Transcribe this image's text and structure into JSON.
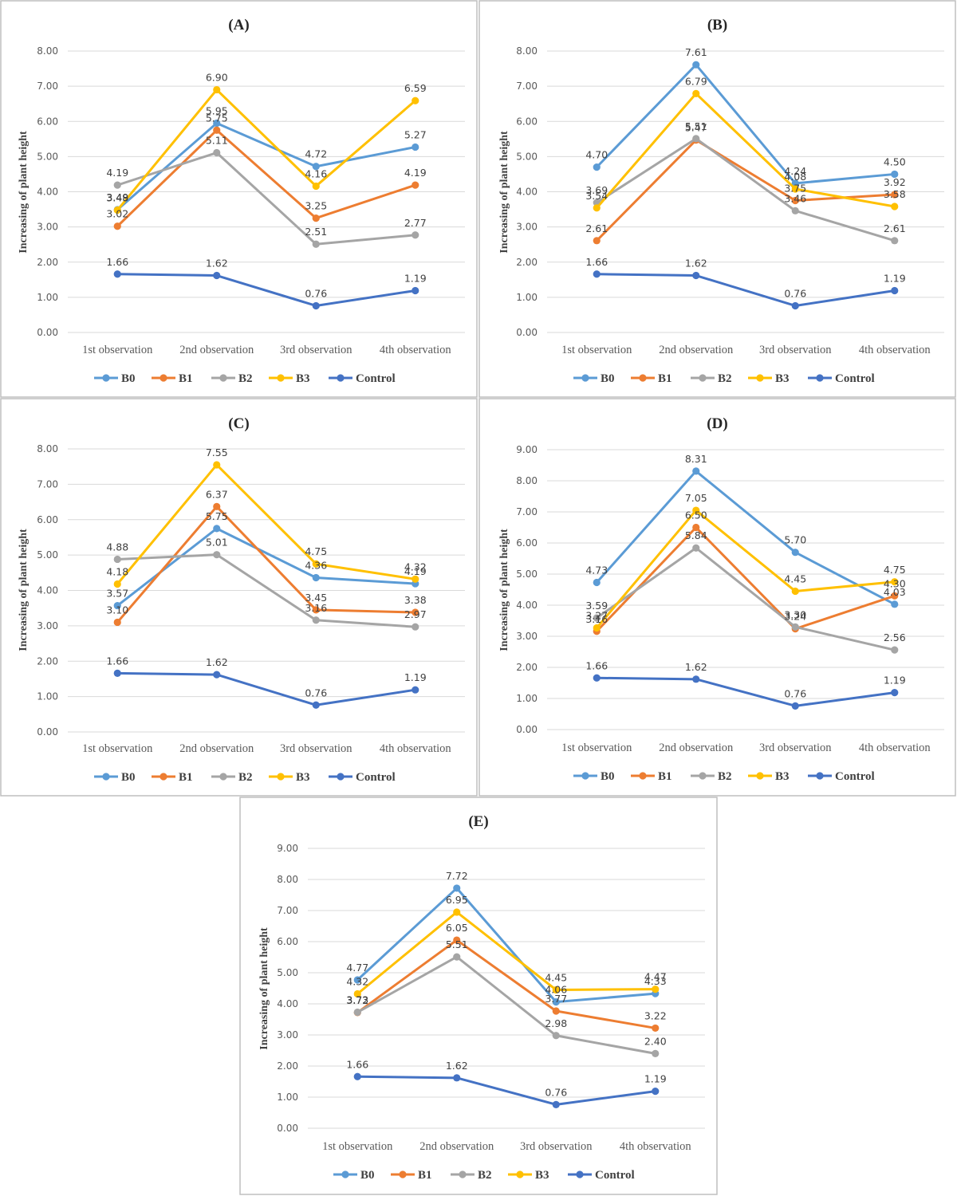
{
  "figure": {
    "series_colors": [
      "#5b9bd5",
      "#ed7d31",
      "#a5a5a5",
      "#ffc000",
      "#4472c4"
    ]
  },
  "chart_data": [
    {
      "type": "line",
      "title": "(A)",
      "xlabel": "",
      "ylabel": "Increasing of plant height",
      "categories": [
        "1st observation",
        "2nd observation",
        "3rd observation",
        "4th observation"
      ],
      "ylim": [
        0,
        8
      ],
      "yticks": [
        "0.00",
        "1.00",
        "2.00",
        "3.00",
        "4.00",
        "5.00",
        "6.00",
        "7.00",
        "8.00"
      ],
      "legend": "bottom",
      "series": [
        {
          "name": "B0",
          "color": "#5b9bd5",
          "values": [
            3.49,
            5.95,
            4.72,
            5.27
          ],
          "labels": [
            "3.49",
            "5.95",
            "4.72",
            "5.27"
          ]
        },
        {
          "name": "B1",
          "color": "#ed7d31",
          "values": [
            3.02,
            5.75,
            3.25,
            4.19
          ],
          "labels": [
            "3.02",
            "5.75",
            "3.25",
            "4.19"
          ]
        },
        {
          "name": "B2",
          "color": "#a5a5a5",
          "values": [
            4.19,
            5.11,
            2.51,
            2.77
          ],
          "labels": [
            "4.19",
            "5.11",
            "2.51",
            "2.77"
          ]
        },
        {
          "name": "B3",
          "color": "#ffc000",
          "values": [
            3.48,
            6.9,
            4.16,
            6.59
          ],
          "labels": [
            "3.48",
            "6.90",
            "4.16",
            "6.59"
          ]
        },
        {
          "name": "Control",
          "color": "#4472c4",
          "values": [
            1.66,
            1.62,
            0.76,
            1.19
          ],
          "labels": [
            "1.66",
            "1.62",
            "0.76",
            "1.19"
          ]
        }
      ]
    },
    {
      "type": "line",
      "title": "(B)",
      "xlabel": "",
      "ylabel": "Increasing of plant height",
      "categories": [
        "1st observation",
        "2nd observation",
        "3rd observation",
        "4th observation"
      ],
      "ylim": [
        0,
        8
      ],
      "yticks": [
        "0.00",
        "1.00",
        "2.00",
        "3.00",
        "4.00",
        "5.00",
        "6.00",
        "7.00",
        "8.00"
      ],
      "legend": "bottom",
      "series": [
        {
          "name": "B0",
          "color": "#5b9bd5",
          "values": [
            4.7,
            7.61,
            4.24,
            4.5
          ],
          "labels": [
            "4.70",
            "7.61",
            "4.24",
            "4.50"
          ]
        },
        {
          "name": "B1",
          "color": "#ed7d31",
          "values": [
            2.61,
            5.47,
            3.75,
            3.92
          ],
          "labels": [
            "2.61",
            "5.47",
            "3.75",
            "3.92"
          ]
        },
        {
          "name": "B2",
          "color": "#a5a5a5",
          "values": [
            3.69,
            5.51,
            3.46,
            2.61
          ],
          "labels": [
            "3.69",
            "5.51",
            "3.46",
            "2.61"
          ]
        },
        {
          "name": "B3",
          "color": "#ffc000",
          "values": [
            3.54,
            6.79,
            4.08,
            3.58
          ],
          "labels": [
            "3.54",
            "6.79",
            "4.08",
            "3.58"
          ]
        },
        {
          "name": "Control",
          "color": "#4472c4",
          "values": [
            1.66,
            1.62,
            0.76,
            1.19
          ],
          "labels": [
            "1.66",
            "1.62",
            "0.76",
            "1.19"
          ]
        }
      ]
    },
    {
      "type": "line",
      "title": "(C)",
      "xlabel": "",
      "ylabel": "Increasing of plant height",
      "categories": [
        "1st observation",
        "2nd observation",
        "3rd observation",
        "4th observation"
      ],
      "ylim": [
        0,
        8
      ],
      "yticks": [
        "0.00",
        "1.00",
        "2.00",
        "3.00",
        "4.00",
        "5.00",
        "6.00",
        "7.00",
        "8.00"
      ],
      "legend": "bottom",
      "series": [
        {
          "name": "B0",
          "color": "#5b9bd5",
          "values": [
            3.57,
            5.75,
            4.36,
            4.19
          ],
          "labels": [
            "3.57",
            "5.75",
            "4.36",
            "4.19"
          ]
        },
        {
          "name": "B1",
          "color": "#ed7d31",
          "values": [
            3.1,
            6.37,
            3.45,
            3.38
          ],
          "labels": [
            "3.10",
            "6.37",
            "3.45",
            "3.38"
          ]
        },
        {
          "name": "B2",
          "color": "#a5a5a5",
          "values": [
            4.88,
            5.01,
            3.16,
            2.97
          ],
          "labels": [
            "4.88",
            "5.01",
            "3.16",
            "2.97"
          ]
        },
        {
          "name": "B3",
          "color": "#ffc000",
          "values": [
            4.18,
            7.55,
            4.75,
            4.32
          ],
          "labels": [
            "4.18",
            "7.55",
            "4.75",
            "4.32"
          ]
        },
        {
          "name": "Control",
          "color": "#4472c4",
          "values": [
            1.66,
            1.62,
            0.76,
            1.19
          ],
          "labels": [
            "1.66",
            "1.62",
            "0.76",
            "1.19"
          ]
        }
      ]
    },
    {
      "type": "line",
      "title": "(D)",
      "xlabel": "",
      "ylabel": "Increasing of plant height",
      "categories": [
        "1st observation",
        "2nd observation",
        "3rd observation",
        "4th observation"
      ],
      "ylim": [
        0,
        9
      ],
      "yticks": [
        "0.00",
        "1.00",
        "2.00",
        "3.00",
        "4.00",
        "5.00",
        "6.00",
        "7.00",
        "8.00",
        "9.00"
      ],
      "legend": "bottom",
      "series": [
        {
          "name": "B0",
          "color": "#5b9bd5",
          "values": [
            4.73,
            8.31,
            5.7,
            4.03
          ],
          "labels": [
            "4.73",
            "8.31",
            "5.70",
            "4.03"
          ]
        },
        {
          "name": "B1",
          "color": "#ed7d31",
          "values": [
            3.16,
            6.5,
            3.24,
            4.3
          ],
          "labels": [
            "3.16",
            "6.50",
            "3.24",
            "4.30"
          ]
        },
        {
          "name": "B2",
          "color": "#a5a5a5",
          "values": [
            3.59,
            5.84,
            3.3,
            2.56
          ],
          "labels": [
            "3.59",
            "5.84",
            "3.30",
            "2.56"
          ]
        },
        {
          "name": "B3",
          "color": "#ffc000",
          "values": [
            3.27,
            7.05,
            4.45,
            4.75
          ],
          "labels": [
            "3.27",
            "7.05",
            "4.45",
            "4.75"
          ]
        },
        {
          "name": "Control",
          "color": "#4472c4",
          "values": [
            1.66,
            1.62,
            0.76,
            1.19
          ],
          "labels": [
            "1.66",
            "1.62",
            "0.76",
            "1.19"
          ]
        }
      ]
    },
    {
      "type": "line",
      "title": "(E)",
      "xlabel": "",
      "ylabel": "Increasing of plant height",
      "categories": [
        "1st observation",
        "2nd observation",
        "3rd observation",
        "4th observation"
      ],
      "ylim": [
        0,
        9
      ],
      "yticks": [
        "0.00",
        "1.00",
        "2.00",
        "3.00",
        "4.00",
        "5.00",
        "6.00",
        "7.00",
        "8.00",
        "9.00"
      ],
      "legend": "bottom",
      "series": [
        {
          "name": "B0",
          "color": "#5b9bd5",
          "values": [
            4.77,
            7.72,
            4.06,
            4.33
          ],
          "labels": [
            "4.77",
            "7.72",
            "4.06",
            "4.33"
          ]
        },
        {
          "name": "B1",
          "color": "#ed7d31",
          "values": [
            3.72,
            6.05,
            3.77,
            3.22
          ],
          "labels": [
            "3.72",
            "6.05",
            "3.77",
            "3.22"
          ]
        },
        {
          "name": "B2",
          "color": "#a5a5a5",
          "values": [
            3.73,
            5.51,
            2.98,
            2.4
          ],
          "labels": [
            "3.73",
            "5.51",
            "2.98",
            "2.40"
          ]
        },
        {
          "name": "B3",
          "color": "#ffc000",
          "values": [
            4.32,
            6.95,
            4.45,
            4.47
          ],
          "labels": [
            "4.32",
            "6.95",
            "4.45",
            "4.47"
          ]
        },
        {
          "name": "Control",
          "color": "#4472c4",
          "values": [
            1.66,
            1.62,
            0.76,
            1.19
          ],
          "labels": [
            "1.66",
            "1.62",
            "0.76",
            "1.19"
          ]
        }
      ]
    }
  ]
}
